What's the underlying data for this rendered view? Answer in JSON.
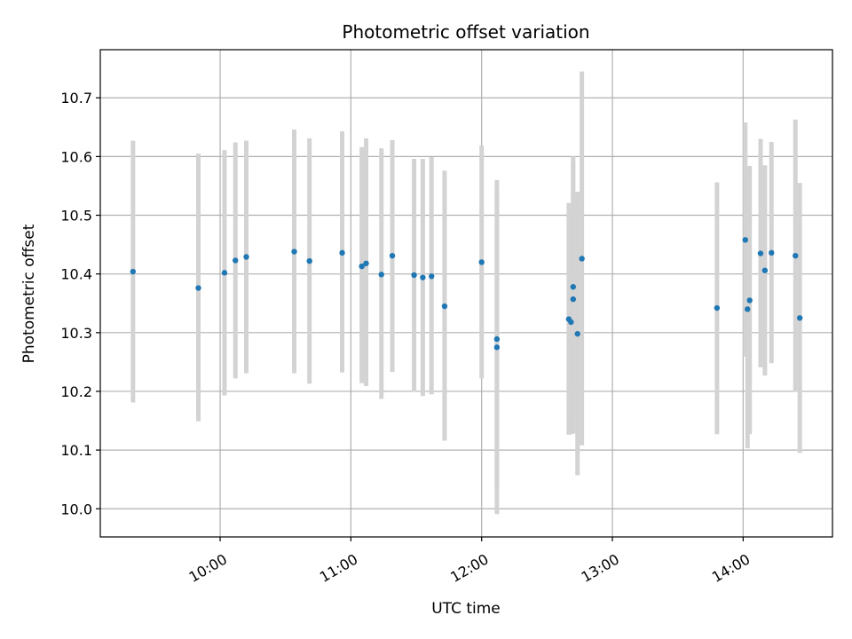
{
  "chart_data": {
    "type": "scatter",
    "title": "Photometric offset variation",
    "xlabel": "UTC time",
    "ylabel": "Photometric offset",
    "x_axis": "time (UTC, HH:MM)",
    "xlim": [
      "09:05",
      "14:41"
    ],
    "ylim": [
      9.952,
      10.782
    ],
    "x_ticks": [
      "10:00",
      "11:00",
      "12:00",
      "13:00",
      "14:00"
    ],
    "y_ticks": [
      10.0,
      10.1,
      10.2,
      10.3,
      10.4,
      10.5,
      10.6,
      10.7
    ],
    "grid": true,
    "marker_color": "#1f77b4",
    "errorbar_color": "#d3d3d3",
    "series": [
      {
        "points": [
          {
            "x": "09:20",
            "y": 10.404,
            "ymin": 10.181,
            "ymax": 10.627
          },
          {
            "x": "09:50",
            "y": 10.376,
            "ymin": 10.149,
            "ymax": 10.605
          },
          {
            "x": "10:02",
            "y": 10.402,
            "ymin": 10.193,
            "ymax": 10.611
          },
          {
            "x": "10:07",
            "y": 10.423,
            "ymin": 10.222,
            "ymax": 10.624
          },
          {
            "x": "10:12",
            "y": 10.429,
            "ymin": 10.231,
            "ymax": 10.627
          },
          {
            "x": "10:34",
            "y": 10.438,
            "ymin": 10.231,
            "ymax": 10.646
          },
          {
            "x": "10:41",
            "y": 10.422,
            "ymin": 10.213,
            "ymax": 10.631
          },
          {
            "x": "10:56",
            "y": 10.436,
            "ymin": 10.232,
            "ymax": 10.643
          },
          {
            "x": "11:05",
            "y": 10.413,
            "ymin": 10.214,
            "ymax": 10.616
          },
          {
            "x": "11:07",
            "y": 10.418,
            "ymin": 10.209,
            "ymax": 10.631
          },
          {
            "x": "11:14",
            "y": 10.399,
            "ymin": 10.187,
            "ymax": 10.614
          },
          {
            "x": "11:19",
            "y": 10.431,
            "ymin": 10.233,
            "ymax": 10.628
          },
          {
            "x": "11:29",
            "y": 10.398,
            "ymin": 10.199,
            "ymax": 10.596
          },
          {
            "x": "11:33",
            "y": 10.394,
            "ymin": 10.192,
            "ymax": 10.596
          },
          {
            "x": "11:37",
            "y": 10.396,
            "ymin": 10.195,
            "ymax": 10.599
          },
          {
            "x": "11:43",
            "y": 10.345,
            "ymin": 10.116,
            "ymax": 10.576
          },
          {
            "x": "12:00",
            "y": 10.42,
            "ymin": 10.222,
            "ymax": 10.619
          },
          {
            "x": "12:07",
            "y": 10.289,
            "ymin": 10.033,
            "ymax": 10.545
          },
          {
            "x": "12:07",
            "y": 10.275,
            "ymin": 9.991,
            "ymax": 10.56
          },
          {
            "x": "12:40",
            "y": 10.323,
            "ymin": 10.126,
            "ymax": 10.521
          },
          {
            "x": "12:41",
            "y": 10.318,
            "ymin": 10.127,
            "ymax": 10.51
          },
          {
            "x": "12:42",
            "y": 10.378,
            "ymin": 10.156,
            "ymax": 10.6
          },
          {
            "x": "12:42",
            "y": 10.357,
            "ymin": 10.128,
            "ymax": 10.586
          },
          {
            "x": "12:44",
            "y": 10.298,
            "ymin": 10.057,
            "ymax": 10.54
          },
          {
            "x": "12:46",
            "y": 10.426,
            "ymin": 10.108,
            "ymax": 10.745
          },
          {
            "x": "13:48",
            "y": 10.342,
            "ymin": 10.127,
            "ymax": 10.556
          },
          {
            "x": "14:01",
            "y": 10.458,
            "ymin": 10.259,
            "ymax": 10.658
          },
          {
            "x": "14:02",
            "y": 10.34,
            "ymin": 10.103,
            "ymax": 10.578
          },
          {
            "x": "14:03",
            "y": 10.355,
            "ymin": 10.127,
            "ymax": 10.584
          },
          {
            "x": "14:08",
            "y": 10.435,
            "ymin": 10.241,
            "ymax": 10.63
          },
          {
            "x": "14:10",
            "y": 10.406,
            "ymin": 10.227,
            "ymax": 10.585
          },
          {
            "x": "14:13",
            "y": 10.436,
            "ymin": 10.248,
            "ymax": 10.625
          },
          {
            "x": "14:24",
            "y": 10.431,
            "ymin": 10.199,
            "ymax": 10.663
          },
          {
            "x": "14:26",
            "y": 10.325,
            "ymin": 10.095,
            "ymax": 10.555
          }
        ]
      }
    ]
  }
}
